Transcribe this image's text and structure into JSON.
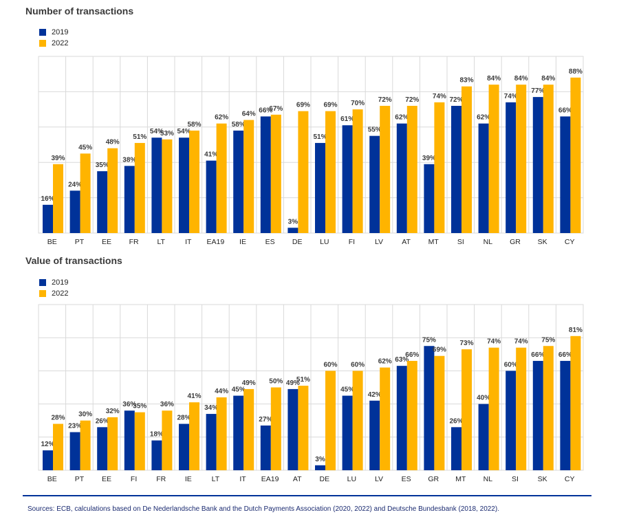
{
  "colors": {
    "series_2019": "#003299",
    "series_2022": "#ffb400",
    "grid": "#d9d9d9",
    "divider": "#003299"
  },
  "chart_data": [
    {
      "type": "bar",
      "title": "Number of transactions",
      "ylim": [
        0,
        100
      ],
      "grid": true,
      "legend": "top-left",
      "categories": [
        "BE",
        "PT",
        "EE",
        "FR",
        "LT",
        "IT",
        "EA19",
        "IE",
        "ES",
        "DE",
        "LU",
        "FI",
        "LV",
        "AT",
        "MT",
        "SI",
        "NL",
        "GR",
        "SK",
        "CY"
      ],
      "series": [
        {
          "name": "2019",
          "values": [
            16,
            24,
            35,
            38,
            54,
            54,
            41,
            58,
            66,
            3,
            51,
            61,
            55,
            62,
            39,
            72,
            62,
            74,
            77,
            66
          ]
        },
        {
          "name": "2022",
          "values": [
            39,
            45,
            48,
            51,
            53,
            58,
            62,
            64,
            67,
            69,
            69,
            70,
            72,
            72,
            74,
            83,
            84,
            84,
            84,
            88
          ]
        }
      ]
    },
    {
      "type": "bar",
      "title": "Value of transactions",
      "ylim": [
        0,
        100
      ],
      "grid": true,
      "legend": "top-left",
      "categories": [
        "BE",
        "PT",
        "EE",
        "FI",
        "FR",
        "IE",
        "LT",
        "IT",
        "EA19",
        "AT",
        "DE",
        "LU",
        "LV",
        "ES",
        "GR",
        "MT",
        "NL",
        "SI",
        "SK",
        "CY"
      ],
      "series": [
        {
          "name": "2019",
          "values": [
            12,
            23,
            26,
            36,
            18,
            28,
            34,
            45,
            27,
            49,
            3,
            45,
            42,
            63,
            75,
            26,
            40,
            60,
            66,
            66
          ]
        },
        {
          "name": "2022",
          "values": [
            28,
            30,
            32,
            35,
            36,
            41,
            44,
            49,
            50,
            51,
            60,
            60,
            62,
            66,
            69,
            73,
            74,
            74,
            75,
            81
          ]
        }
      ]
    }
  ],
  "source": "Sources: ECB, calculations based on De Nederlandsche Bank and the Dutch Payments Association (2020, 2022) and Deutsche Bundesbank (2018, 2022)."
}
